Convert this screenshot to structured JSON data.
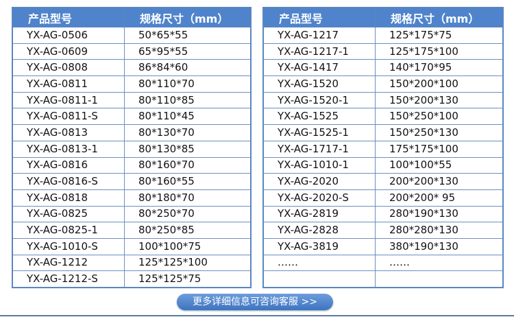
{
  "headers": {
    "model": "产品型号",
    "size": "规格尺寸（mm）"
  },
  "left": [
    [
      "YX-AG-0506",
      "50*65*55"
    ],
    [
      "YX-AG-0609",
      "65*95*55"
    ],
    [
      "YX-AG-0808",
      "86*84*60"
    ],
    [
      "YX-AG-0811",
      "80*110*70"
    ],
    [
      "YX-AG-0811-1",
      "80*110*85"
    ],
    [
      "YX-AG-0811-S",
      "80*110*45"
    ],
    [
      "YX-AG-0813",
      "80*130*70"
    ],
    [
      "YX-AG-0813-1",
      "80*130*85"
    ],
    [
      "YX-AG-0816",
      "80*160*70"
    ],
    [
      "YX-AG-0816-S",
      "80*160*55"
    ],
    [
      "YX-AG-0818",
      "80*180*70"
    ],
    [
      "YX-AG-0825",
      "80*250*70"
    ],
    [
      "YX-AG-0825-1",
      "80*250*85"
    ],
    [
      "YX-AG-1010-S",
      "100*100*75"
    ],
    [
      "YX-AG-1212",
      "125*125*100"
    ],
    [
      "YX-AG-1212-S",
      "125*125*75"
    ]
  ],
  "right": [
    [
      "YX-AG-1217",
      "125*175*75"
    ],
    [
      "YX-AG-1217-1",
      "125*175*100"
    ],
    [
      "YX-AG-1417",
      "140*170*95"
    ],
    [
      "YX-AG-1520",
      "150*200*100"
    ],
    [
      "YX-AG-1520-1",
      "150*200*130"
    ],
    [
      "YX-AG-1525",
      "150*250*100"
    ],
    [
      "YX-AG-1525-1",
      "150*250*130"
    ],
    [
      "YX-AG-1717-1",
      "175*175*100"
    ],
    [
      "YX-AG-1010-1",
      "100*100*55"
    ],
    [
      "YX-AG-2020",
      "200*200*130"
    ],
    [
      "YX-AG-2020-S",
      "200*200* 95"
    ],
    [
      "YX-AG-2819",
      "280*190*130"
    ],
    [
      "YX-AG-2828",
      "280*280*130"
    ],
    [
      "YX-AG-3819",
      "380*190*130"
    ],
    [
      "……",
      "……"
    ],
    [
      "",
      ""
    ]
  ],
  "button": "更多详细信息可咨询客服 >>"
}
